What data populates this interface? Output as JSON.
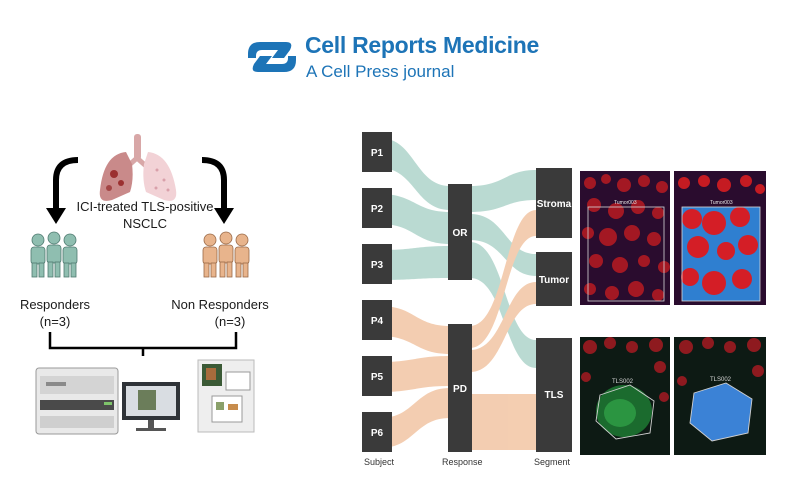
{
  "header": {
    "journal_title": "Cell Reports Medicine",
    "journal_subtitle": "A Cell Press journal",
    "brand_color": "#1d74b7"
  },
  "cohort": {
    "title_line1": "ICI-treated TLS-positive",
    "title_line2": "NSCLC",
    "responders": {
      "label": "Responders",
      "count": "(n=3)",
      "color": "#8fbeb0"
    },
    "non_responders": {
      "label": "Non Responders",
      "count": "(n=3)",
      "color": "#e8b48c"
    }
  },
  "sankey": {
    "subjects": [
      "P1",
      "P2",
      "P3",
      "P4",
      "P5",
      "P6"
    ],
    "responses": [
      "OR",
      "PD"
    ],
    "segments": [
      "Stroma",
      "Tumor",
      "TLS"
    ],
    "axis_labels": [
      "Subject",
      "Response",
      "Segment"
    ],
    "colors": {
      "node": "#3a3a3a",
      "or_flow": "#b7d9d0",
      "pd_flow": "#f3cbad"
    }
  },
  "images": {
    "top_left_label": "Tumor003",
    "top_right_label": "Tumor003",
    "bottom_left_label": "TLS002",
    "bottom_right_label": "TLS002"
  }
}
